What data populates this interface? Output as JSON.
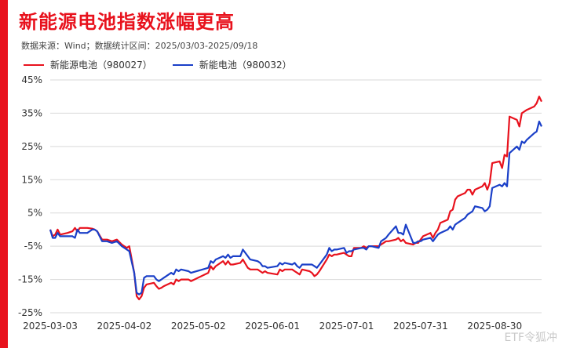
{
  "header": {
    "title": "新能源电池指数涨幅更高",
    "source": "数据来源：Wind；数据统计区间：2025/03/03-2025/09/18"
  },
  "watermark": "ETF令狐冲",
  "colors": {
    "accent": "#e8121d",
    "series1": "#e8121d",
    "series2": "#1a3fc8"
  },
  "chart_data": {
    "type": "line",
    "title": "新能源电池指数涨幅更高",
    "xlabel": "",
    "ylabel": "",
    "ylim": [
      -25,
      45
    ],
    "y_ticks": [
      "45%",
      "35%",
      "25%",
      "15%",
      "5%",
      "-5%",
      "-15%",
      "-25%"
    ],
    "y_tick_values": [
      45,
      35,
      25,
      15,
      5,
      -5,
      -15,
      -25
    ],
    "x_ticks": [
      "2025-03-03",
      "2025-04-02",
      "2025-05-02",
      "2025-06-01",
      "2025-07-01",
      "2025-07-31",
      "2025-08-30"
    ],
    "grid": "horizontal",
    "legend": "top-left",
    "x_start": "2025-03-03",
    "x_end": "2025-09-18",
    "series": [
      {
        "name": "新能源电池（980027）",
        "points": [
          [
            "2025-03-03",
            0
          ],
          [
            "2025-03-04",
            -2
          ],
          [
            "2025-03-05",
            -1.5
          ],
          [
            "2025-03-06",
            0
          ],
          [
            "2025-03-07",
            -1.5
          ],
          [
            "2025-03-10",
            -1
          ],
          [
            "2025-03-12",
            -0.5
          ],
          [
            "2025-03-13",
            0.5
          ],
          [
            "2025-03-14",
            -0.5
          ],
          [
            "2025-03-15",
            0.5
          ],
          [
            "2025-03-18",
            0.5
          ],
          [
            "2025-03-20",
            0.3
          ],
          [
            "2025-03-21",
            0
          ],
          [
            "2025-03-22",
            -0.5
          ],
          [
            "2025-03-24",
            -3
          ],
          [
            "2025-03-26",
            -3
          ],
          [
            "2025-03-28",
            -3.5
          ],
          [
            "2025-03-30",
            -3
          ],
          [
            "2025-04-01",
            -4.5
          ],
          [
            "2025-04-03",
            -5.5
          ],
          [
            "2025-04-04",
            -5
          ],
          [
            "2025-04-06",
            -13
          ],
          [
            "2025-04-07",
            -20
          ],
          [
            "2025-04-08",
            -21
          ],
          [
            "2025-04-09",
            -20
          ],
          [
            "2025-04-10",
            -17.5
          ],
          [
            "2025-04-11",
            -16.5
          ],
          [
            "2025-04-14",
            -16
          ],
          [
            "2025-04-15",
            -17
          ],
          [
            "2025-04-16",
            -17.8
          ],
          [
            "2025-04-17",
            -17.5
          ],
          [
            "2025-04-18",
            -17
          ],
          [
            "2025-04-21",
            -16
          ],
          [
            "2025-04-22",
            -16.5
          ],
          [
            "2025-04-23",
            -15
          ],
          [
            "2025-04-24",
            -15.5
          ],
          [
            "2025-04-25",
            -15
          ],
          [
            "2025-04-28",
            -15
          ],
          [
            "2025-04-29",
            -15.5
          ],
          [
            "2025-05-06",
            -13
          ],
          [
            "2025-05-07",
            -11
          ],
          [
            "2025-05-08",
            -12
          ],
          [
            "2025-05-09",
            -11
          ],
          [
            "2025-05-12",
            -9.5
          ],
          [
            "2025-05-13",
            -10.5
          ],
          [
            "2025-05-14",
            -9.5
          ],
          [
            "2025-05-15",
            -10.5
          ],
          [
            "2025-05-16",
            -10.5
          ],
          [
            "2025-05-19",
            -10
          ],
          [
            "2025-05-20",
            -9
          ],
          [
            "2025-05-22",
            -11.5
          ],
          [
            "2025-05-23",
            -12
          ],
          [
            "2025-05-26",
            -12
          ],
          [
            "2025-05-27",
            -12.5
          ],
          [
            "2025-05-28",
            -13
          ],
          [
            "2025-05-29",
            -12.5
          ],
          [
            "2025-05-30",
            -13
          ],
          [
            "2025-06-03",
            -13.5
          ],
          [
            "2025-06-04",
            -12
          ],
          [
            "2025-06-05",
            -12.5
          ],
          [
            "2025-06-06",
            -12
          ],
          [
            "2025-06-09",
            -12
          ],
          [
            "2025-06-10",
            -12.5
          ],
          [
            "2025-06-11",
            -13
          ],
          [
            "2025-06-12",
            -13.5
          ],
          [
            "2025-06-13",
            -12
          ],
          [
            "2025-06-16",
            -12.5
          ],
          [
            "2025-06-17",
            -13
          ],
          [
            "2025-06-18",
            -14
          ],
          [
            "2025-06-19",
            -13.5
          ],
          [
            "2025-06-20",
            -12.5
          ],
          [
            "2025-06-23",
            -9
          ],
          [
            "2025-06-24",
            -7.5
          ],
          [
            "2025-06-25",
            -8
          ],
          [
            "2025-06-26",
            -7.5
          ],
          [
            "2025-06-27",
            -7.5
          ],
          [
            "2025-06-30",
            -7
          ],
          [
            "2025-07-01",
            -7.5
          ],
          [
            "2025-07-02",
            -8
          ],
          [
            "2025-07-03",
            -8
          ],
          [
            "2025-07-04",
            -5.5
          ],
          [
            "2025-07-07",
            -5.5
          ],
          [
            "2025-07-08",
            -5
          ],
          [
            "2025-07-09",
            -5.5
          ],
          [
            "2025-07-10",
            -5
          ],
          [
            "2025-07-11",
            -5
          ],
          [
            "2025-07-14",
            -5
          ],
          [
            "2025-07-15",
            -4.5
          ],
          [
            "2025-07-16",
            -4
          ],
          [
            "2025-07-17",
            -3.5
          ],
          [
            "2025-07-18",
            -3.5
          ],
          [
            "2025-07-21",
            -3
          ],
          [
            "2025-07-22",
            -2.5
          ],
          [
            "2025-07-23",
            -3.5
          ],
          [
            "2025-07-24",
            -3
          ],
          [
            "2025-07-25",
            -4
          ],
          [
            "2025-07-28",
            -4.5
          ],
          [
            "2025-07-29",
            -4
          ],
          [
            "2025-07-30",
            -4
          ],
          [
            "2025-07-31",
            -3
          ],
          [
            "2025-08-01",
            -2
          ],
          [
            "2025-08-04",
            -1
          ],
          [
            "2025-08-05",
            -2.5
          ],
          [
            "2025-08-06",
            -1
          ],
          [
            "2025-08-07",
            0
          ],
          [
            "2025-08-08",
            2
          ],
          [
            "2025-08-11",
            3
          ],
          [
            "2025-08-12",
            5.5
          ],
          [
            "2025-08-13",
            6
          ],
          [
            "2025-08-14",
            9
          ],
          [
            "2025-08-15",
            10
          ],
          [
            "2025-08-18",
            11
          ],
          [
            "2025-08-19",
            12
          ],
          [
            "2025-08-20",
            12
          ],
          [
            "2025-08-21",
            10.5
          ],
          [
            "2025-08-22",
            12
          ],
          [
            "2025-08-25",
            13
          ],
          [
            "2025-08-26",
            14
          ],
          [
            "2025-08-27",
            12
          ],
          [
            "2025-08-28",
            14
          ],
          [
            "2025-08-29",
            20
          ],
          [
            "2025-09-01",
            20.5
          ],
          [
            "2025-09-02",
            18.5
          ],
          [
            "2025-09-03",
            22.5
          ],
          [
            "2025-09-04",
            22
          ],
          [
            "2025-09-05",
            34
          ],
          [
            "2025-09-08",
            33
          ],
          [
            "2025-09-09",
            31
          ],
          [
            "2025-09-10",
            35
          ],
          [
            "2025-09-11",
            35.5
          ],
          [
            "2025-09-12",
            36
          ],
          [
            "2025-09-15",
            37
          ],
          [
            "2025-09-16",
            38
          ],
          [
            "2025-09-17",
            40
          ],
          [
            "2025-09-18",
            38.5
          ]
        ]
      },
      {
        "name": "新能电池（980032）",
        "points": [
          [
            "2025-03-03",
            0
          ],
          [
            "2025-03-04",
            -2.5
          ],
          [
            "2025-03-05",
            -2.5
          ],
          [
            "2025-03-06",
            -1
          ],
          [
            "2025-03-07",
            -2
          ],
          [
            "2025-03-10",
            -2
          ],
          [
            "2025-03-12",
            -2
          ],
          [
            "2025-03-13",
            -2.5
          ],
          [
            "2025-03-14",
            0
          ],
          [
            "2025-03-15",
            -1
          ],
          [
            "2025-03-18",
            -1
          ],
          [
            "2025-03-20",
            0
          ],
          [
            "2025-03-21",
            0
          ],
          [
            "2025-03-22",
            -0.5
          ],
          [
            "2025-03-24",
            -3.5
          ],
          [
            "2025-03-26",
            -3.5
          ],
          [
            "2025-03-28",
            -4
          ],
          [
            "2025-03-30",
            -3.5
          ],
          [
            "2025-04-01",
            -5
          ],
          [
            "2025-04-03",
            -6
          ],
          [
            "2025-04-04",
            -6.5
          ],
          [
            "2025-04-06",
            -13
          ],
          [
            "2025-04-07",
            -19
          ],
          [
            "2025-04-08",
            -19.5
          ],
          [
            "2025-04-09",
            -19
          ],
          [
            "2025-04-10",
            -14.5
          ],
          [
            "2025-04-11",
            -14
          ],
          [
            "2025-04-14",
            -14
          ],
          [
            "2025-04-15",
            -15
          ],
          [
            "2025-04-16",
            -15.5
          ],
          [
            "2025-04-17",
            -15
          ],
          [
            "2025-04-18",
            -14.5
          ],
          [
            "2025-04-21",
            -13
          ],
          [
            "2025-04-22",
            -13.5
          ],
          [
            "2025-04-23",
            -12
          ],
          [
            "2025-04-24",
            -12.5
          ],
          [
            "2025-04-25",
            -12
          ],
          [
            "2025-04-28",
            -12.5
          ],
          [
            "2025-04-29",
            -13
          ],
          [
            "2025-05-06",
            -11.5
          ],
          [
            "2025-05-07",
            -9.5
          ],
          [
            "2025-05-08",
            -10
          ],
          [
            "2025-05-09",
            -9
          ],
          [
            "2025-05-12",
            -8
          ],
          [
            "2025-05-13",
            -8.5
          ],
          [
            "2025-05-14",
            -7.5
          ],
          [
            "2025-05-15",
            -8.5
          ],
          [
            "2025-05-16",
            -8
          ],
          [
            "2025-05-19",
            -8
          ],
          [
            "2025-05-20",
            -6
          ],
          [
            "2025-05-22",
            -8
          ],
          [
            "2025-05-23",
            -9
          ],
          [
            "2025-05-26",
            -9.5
          ],
          [
            "2025-05-27",
            -10
          ],
          [
            "2025-05-28",
            -11
          ],
          [
            "2025-05-29",
            -11
          ],
          [
            "2025-05-30",
            -11.5
          ],
          [
            "2025-06-03",
            -11
          ],
          [
            "2025-06-04",
            -10
          ],
          [
            "2025-06-05",
            -10.5
          ],
          [
            "2025-06-06",
            -10
          ],
          [
            "2025-06-09",
            -10.5
          ],
          [
            "2025-06-10",
            -10
          ],
          [
            "2025-06-11",
            -11
          ],
          [
            "2025-06-12",
            -11.5
          ],
          [
            "2025-06-13",
            -10.5
          ],
          [
            "2025-06-16",
            -10.5
          ],
          [
            "2025-06-17",
            -10.5
          ],
          [
            "2025-06-18",
            -11
          ],
          [
            "2025-06-19",
            -11.5
          ],
          [
            "2025-06-20",
            -10.5
          ],
          [
            "2025-06-23",
            -7.5
          ],
          [
            "2025-06-24",
            -5.5
          ],
          [
            "2025-06-25",
            -6.5
          ],
          [
            "2025-06-26",
            -6
          ],
          [
            "2025-06-27",
            -6
          ],
          [
            "2025-06-30",
            -5.5
          ],
          [
            "2025-07-01",
            -7
          ],
          [
            "2025-07-02",
            -6.5
          ],
          [
            "2025-07-03",
            -6.5
          ],
          [
            "2025-07-04",
            -6
          ],
          [
            "2025-07-07",
            -5.5
          ],
          [
            "2025-07-08",
            -5.5
          ],
          [
            "2025-07-09",
            -6
          ],
          [
            "2025-07-10",
            -5
          ],
          [
            "2025-07-11",
            -5
          ],
          [
            "2025-07-14",
            -5.5
          ],
          [
            "2025-07-15",
            -3.5
          ],
          [
            "2025-07-16",
            -3
          ],
          [
            "2025-07-17",
            -2.5
          ],
          [
            "2025-07-18",
            -1.5
          ],
          [
            "2025-07-21",
            1
          ],
          [
            "2025-07-22",
            -1
          ],
          [
            "2025-07-23",
            -1
          ],
          [
            "2025-07-24",
            -1.5
          ],
          [
            "2025-07-25",
            1.5
          ],
          [
            "2025-07-28",
            -4
          ],
          [
            "2025-07-29",
            -4
          ],
          [
            "2025-07-30",
            -3.5
          ],
          [
            "2025-07-31",
            -3.5
          ],
          [
            "2025-08-01",
            -3
          ],
          [
            "2025-08-04",
            -2.5
          ],
          [
            "2025-08-05",
            -3.5
          ],
          [
            "2025-08-06",
            -2.5
          ],
          [
            "2025-08-07",
            -1.5
          ],
          [
            "2025-08-08",
            -1
          ],
          [
            "2025-08-11",
            0
          ],
          [
            "2025-08-12",
            1
          ],
          [
            "2025-08-13",
            0
          ],
          [
            "2025-08-14",
            1.5
          ],
          [
            "2025-08-15",
            2
          ],
          [
            "2025-08-18",
            3.5
          ],
          [
            "2025-08-19",
            4.5
          ],
          [
            "2025-08-20",
            5
          ],
          [
            "2025-08-21",
            5.5
          ],
          [
            "2025-08-22",
            7
          ],
          [
            "2025-08-25",
            6.5
          ],
          [
            "2025-08-26",
            5.5
          ],
          [
            "2025-08-27",
            6
          ],
          [
            "2025-08-28",
            7
          ],
          [
            "2025-08-29",
            12.5
          ],
          [
            "2025-09-01",
            13.5
          ],
          [
            "2025-09-02",
            13
          ],
          [
            "2025-09-03",
            14
          ],
          [
            "2025-09-04",
            13
          ],
          [
            "2025-09-05",
            23
          ],
          [
            "2025-09-08",
            25
          ],
          [
            "2025-09-09",
            24
          ],
          [
            "2025-09-10",
            26.5
          ],
          [
            "2025-09-11",
            26
          ],
          [
            "2025-09-12",
            27
          ],
          [
            "2025-09-15",
            29
          ],
          [
            "2025-09-16",
            29.5
          ],
          [
            "2025-09-17",
            32.5
          ],
          [
            "2025-09-18",
            31
          ]
        ]
      }
    ]
  }
}
